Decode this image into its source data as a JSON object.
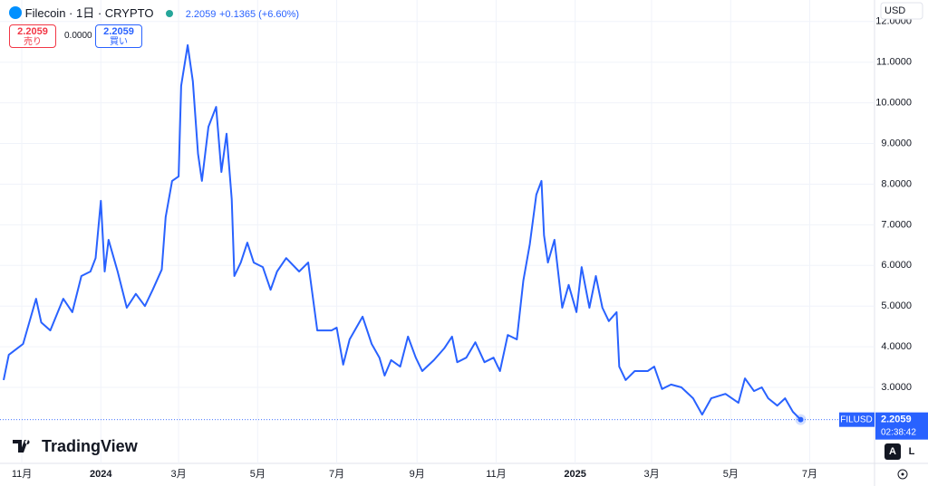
{
  "header": {
    "symbol": "Filecoin · 1日 · CRYPTO",
    "price": "2.2059",
    "change": "+0.1365 (+6.60%)",
    "sell_price": "2.2059",
    "sell_label": "売り",
    "spread": "0.0000",
    "buy_price": "2.2059",
    "buy_label": "買い",
    "currency": "USD",
    "price_tag": {
      "symbol": "FILUSD",
      "price": "2.2059",
      "countdown": "02:38:42"
    },
    "brand": "TradingView",
    "buttons": [
      "A",
      "L"
    ]
  },
  "chart_data": {
    "type": "line",
    "x": [
      -14,
      -10,
      1,
      11,
      15,
      22,
      32,
      39,
      46,
      53,
      57,
      61,
      64,
      67,
      74,
      81,
      88,
      95,
      101,
      108,
      111,
      116,
      121,
      123,
      128,
      132,
      136,
      139,
      144,
      150,
      154,
      158,
      162,
      164,
      169,
      174,
      179,
      186,
      192,
      197,
      204,
      214,
      221,
      228,
      239,
      243,
      248,
      253,
      263,
      270,
      276,
      280,
      285,
      292,
      298,
      304,
      309,
      318,
      326,
      332,
      336,
      343,
      350,
      357,
      364,
      369,
      375,
      382,
      387,
      392,
      397,
      401,
      403,
      406,
      411,
      417,
      422,
      428,
      432,
      438,
      443,
      448,
      453,
      459,
      461,
      466,
      473,
      483,
      488,
      494,
      501,
      509,
      518,
      525,
      532,
      543,
      553,
      558,
      565,
      571,
      576,
      583,
      589,
      595,
      601
    ],
    "series": [
      {
        "name": "FILUSD",
        "color": "#2962ff",
        "values": [
          3.18,
          3.8,
          4.07,
          5.18,
          4.6,
          4.4,
          5.18,
          4.85,
          5.74,
          5.85,
          6.18,
          7.59,
          5.85,
          6.63,
          5.85,
          4.96,
          5.3,
          5.0,
          5.4,
          5.9,
          7.19,
          8.08,
          8.19,
          10.42,
          11.42,
          10.53,
          8.75,
          8.08,
          9.41,
          9.9,
          8.3,
          9.24,
          7.63,
          5.74,
          6.07,
          6.56,
          6.07,
          5.96,
          5.4,
          5.85,
          6.18,
          5.85,
          6.07,
          4.4,
          4.4,
          4.47,
          3.56,
          4.18,
          4.74,
          4.07,
          3.73,
          3.29,
          3.67,
          3.51,
          4.25,
          3.73,
          3.4,
          3.67,
          3.96,
          4.25,
          3.62,
          3.73,
          4.11,
          3.62,
          3.73,
          3.4,
          4.29,
          4.18,
          5.63,
          6.52,
          7.74,
          8.08,
          6.74,
          6.07,
          6.63,
          4.96,
          5.52,
          4.85,
          5.96,
          4.96,
          5.74,
          4.96,
          4.63,
          4.85,
          3.51,
          3.18,
          3.4,
          3.4,
          3.51,
          2.96,
          3.07,
          3.0,
          2.73,
          2.33,
          2.73,
          2.84,
          2.62,
          3.22,
          2.91,
          3.0,
          2.73,
          2.55,
          2.73,
          2.4,
          2.2059
        ]
      }
    ],
    "xlim": [
      -16.8,
      658
    ],
    "xticks": [
      {
        "value": 0,
        "label": "11月"
      },
      {
        "value": 61,
        "label": "2024"
      },
      {
        "value": 121,
        "label": "3月"
      },
      {
        "value": 182,
        "label": "5月"
      },
      {
        "value": 243,
        "label": "7月"
      },
      {
        "value": 305,
        "label": "9月"
      },
      {
        "value": 366,
        "label": "11月"
      },
      {
        "value": 427,
        "label": "2025"
      },
      {
        "value": 486,
        "label": "3月"
      },
      {
        "value": 547,
        "label": "5月"
      },
      {
        "value": 608,
        "label": "7月"
      }
    ],
    "ylim": [
      1.13,
      12.53
    ],
    "yticks": [
      {
        "value": 3,
        "label": "3.0000"
      },
      {
        "value": 4,
        "label": "4.0000"
      },
      {
        "value": 5,
        "label": "5.0000"
      },
      {
        "value": 6,
        "label": "6.0000"
      },
      {
        "value": 7,
        "label": "7.0000"
      },
      {
        "value": 8,
        "label": "8.0000"
      },
      {
        "value": 9,
        "label": "9.0000"
      },
      {
        "value": 10,
        "label": "10.0000"
      },
      {
        "value": 11,
        "label": "11.0000"
      },
      {
        "value": 12,
        "label": "12.0000"
      }
    ],
    "grid": true
  }
}
